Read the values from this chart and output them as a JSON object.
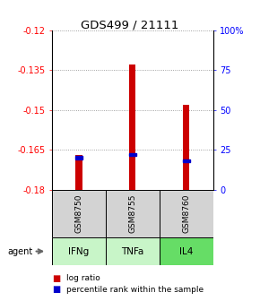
{
  "title": "GDS499 / 21111",
  "samples": [
    "GSM8750",
    "GSM8755",
    "GSM8760"
  ],
  "agents": [
    "IFNg",
    "TNFa",
    "IL4"
  ],
  "log_ratio": [
    -0.167,
    -0.133,
    -0.148
  ],
  "log_ratio_base": -0.18,
  "percentile_rank": [
    20,
    22,
    18
  ],
  "ylim_left": [
    -0.18,
    -0.12
  ],
  "ylim_right": [
    0,
    100
  ],
  "yticks_left": [
    -0.18,
    -0.165,
    -0.15,
    -0.135,
    -0.12
  ],
  "ytick_labels_left": [
    "-0.18",
    "-0.165",
    "-0.15",
    "-0.135",
    "-0.12"
  ],
  "yticks_right": [
    0,
    25,
    50,
    75,
    100
  ],
  "ytick_labels_right": [
    "0",
    "25",
    "50",
    "75",
    "100%"
  ],
  "bar_color": "#cc0000",
  "pct_color": "#0000cc",
  "grid_color": "#888888",
  "sample_bg": "#d3d3d3",
  "agent_bg_colors": [
    "#c8f5c8",
    "#c8f5c8",
    "#66dd66"
  ],
  "bar_width": 0.12
}
